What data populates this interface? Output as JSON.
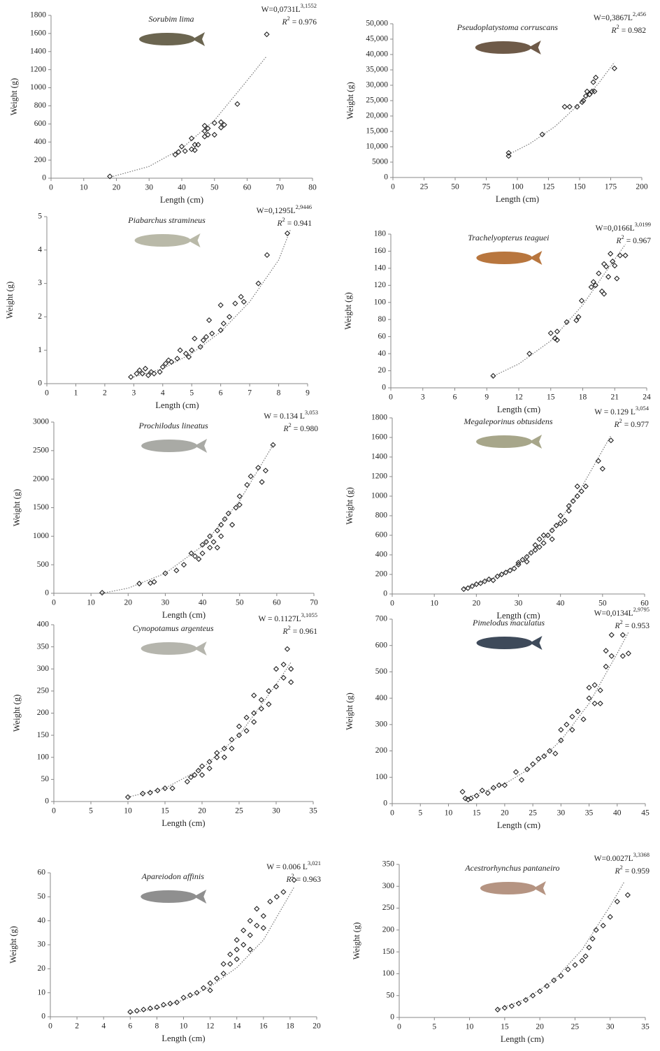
{
  "chart_data": [
    {
      "type": "scatter",
      "title": "Sorubim lima",
      "equation": {
        "text": "W=0,0731L",
        "exponent": "3,1552"
      },
      "r2": {
        "symbol": "R",
        "power": "2",
        "text": "= 0.976"
      },
      "xlabel": "Length (cm)",
      "ylabel": "Weight (g)",
      "x": [
        18,
        38,
        39,
        40,
        41,
        43,
        43,
        44,
        44,
        45,
        47,
        47,
        47,
        48,
        48,
        50,
        50,
        52,
        52,
        53,
        57,
        66
      ],
      "y": [
        20,
        260,
        290,
        350,
        300,
        320,
        440,
        370,
        310,
        370,
        460,
        580,
        520,
        480,
        550,
        610,
        480,
        560,
        620,
        590,
        820,
        1590
      ],
      "trend": {
        "x": [
          19,
          30,
          40,
          50,
          60,
          66
        ],
        "y": [
          20,
          130,
          330,
          640,
          1080,
          1350
        ]
      },
      "xlim": [
        0,
        80
      ],
      "ylim": [
        0,
        1800
      ],
      "xticks": [
        0,
        10,
        20,
        30,
        40,
        50,
        60,
        70,
        80
      ],
      "yticks": [
        0,
        200,
        400,
        600,
        800,
        1000,
        1200,
        1400,
        1600,
        1800
      ],
      "marker_color": "#222222",
      "trend_color": "#777777"
    },
    {
      "type": "scatter",
      "title": "Pseudoplatystoma corruscans",
      "equation": {
        "text": "W=0,3867L",
        "exponent": "2,456"
      },
      "r2": {
        "symbol": "R",
        "power": "2",
        "text": "= 0.982"
      },
      "xlabel": "Length (cm)",
      "ylabel": "Weight (g)",
      "x": [
        93,
        93,
        120,
        138,
        142,
        148,
        152,
        153,
        155,
        156,
        158,
        160,
        161,
        163,
        162,
        178
      ],
      "y": [
        7000,
        8000,
        14000,
        23000,
        23000,
        23000,
        24500,
        25000,
        26500,
        28000,
        27000,
        28000,
        31000,
        32500,
        28000,
        35500
      ],
      "trend": {
        "x": [
          93,
          110,
          130,
          150,
          165,
          178
        ],
        "y": [
          7500,
          11000,
          16500,
          24000,
          30500,
          37500
        ]
      },
      "xlim": [
        0,
        200
      ],
      "ylim": [
        0,
        50000
      ],
      "xticks": [
        0,
        25,
        50,
        75,
        100,
        125,
        150,
        175,
        200
      ],
      "yticks": [
        0,
        5000,
        {
          "value": 10000,
          "label": "10,000"
        },
        {
          "value": 15000,
          "label": "15,000"
        },
        {
          "value": 20000,
          "label": "20,000"
        },
        {
          "value": 25000,
          "label": "25,000"
        },
        {
          "value": 30000,
          "label": "30,000"
        },
        {
          "value": 35000,
          "label": "35,000"
        },
        {
          "value": 40000,
          "label": "40,000"
        },
        {
          "value": 45000,
          "label": "45,000"
        },
        {
          "value": 50000,
          "label": "50,000"
        }
      ],
      "marker_color": "#222222",
      "trend_color": "#777777"
    },
    {
      "type": "scatter",
      "title": "Piabarchus stramineus",
      "equation": {
        "text": "W=0,1295L",
        "exponent": "2,9446"
      },
      "r2": {
        "symbol": "R",
        "power": "2",
        "text": "= 0.941"
      },
      "xlabel": "Length (cm)",
      "ylabel": "Weight (g)",
      "x": [
        2.9,
        3.1,
        3.2,
        3.3,
        3.4,
        3.5,
        3.6,
        3.7,
        3.9,
        4.0,
        4.1,
        4.2,
        4.3,
        4.5,
        4.6,
        4.8,
        4.9,
        5.0,
        5.1,
        5.3,
        5.4,
        5.5,
        5.6,
        5.7,
        6.0,
        6.0,
        6.1,
        6.3,
        6.5,
        6.7,
        6.8,
        7.3,
        7.6,
        8.3
      ],
      "y": [
        0.2,
        0.3,
        0.4,
        0.3,
        0.45,
        0.25,
        0.35,
        0.3,
        0.35,
        0.5,
        0.6,
        0.7,
        0.65,
        0.75,
        1.0,
        0.9,
        0.8,
        1.0,
        1.35,
        1.1,
        1.3,
        1.4,
        1.9,
        1.5,
        1.6,
        2.35,
        1.8,
        2.0,
        2.4,
        2.6,
        2.45,
        3.0,
        3.85,
        4.5
      ],
      "trend": {
        "x": [
          3,
          4,
          5,
          6,
          7,
          8,
          8.4
        ],
        "y": [
          0.2,
          0.45,
          0.9,
          1.55,
          2.45,
          3.7,
          4.6
        ]
      },
      "xlim": [
        0,
        9
      ],
      "ylim": [
        0,
        5
      ],
      "xticks": [
        0,
        1,
        2,
        3,
        4,
        5,
        6,
        7,
        8,
        9
      ],
      "yticks": [
        0,
        1,
        2,
        3,
        4,
        5
      ],
      "marker_color": "#222222",
      "trend_color": "#777777"
    },
    {
      "type": "scatter",
      "title": "Trachelyopterus teaguei",
      "equation": {
        "text": "W=0,0166L",
        "exponent": "3,0199"
      },
      "r2": {
        "symbol": "R",
        "power": "2",
        "text": "= 0.967"
      },
      "xlabel": "Length (cm)",
      "ylabel": "Weight (g)",
      "x": [
        9.6,
        13,
        15,
        15.4,
        15.6,
        15.6,
        16.5,
        17.4,
        17.6,
        17.9,
        18.8,
        19,
        19.2,
        19.5,
        19.8,
        20,
        20,
        20.2,
        20.4,
        20.6,
        20.8,
        21,
        21.2,
        21.5,
        22
      ],
      "y": [
        14,
        40,
        64,
        58,
        66,
        56,
        77,
        79,
        83,
        102,
        118,
        124,
        120,
        134,
        113,
        145,
        110,
        142,
        130,
        157,
        148,
        143,
        128,
        155,
        155
      ],
      "trend": {
        "x": [
          9.5,
          12,
          15,
          18,
          20,
          22
        ],
        "y": [
          13,
          28,
          55,
          97,
          133,
          168
        ]
      },
      "xlim": [
        0,
        24
      ],
      "ylim": [
        0,
        180
      ],
      "xticks": [
        0,
        3,
        6,
        9,
        12,
        15,
        18,
        21,
        24
      ],
      "yticks": [
        0,
        20,
        40,
        60,
        80,
        100,
        120,
        140,
        160,
        180
      ],
      "marker_color": "#222222",
      "trend_color": "#777777"
    },
    {
      "type": "scatter",
      "title": "Prochilodus lineatus",
      "equation": {
        "text": "W = 0.134 L",
        "exponent": "3,053"
      },
      "r2": {
        "symbol": "R",
        "power": "2",
        "text": "= 0.980"
      },
      "xlabel": "Length (cm)",
      "ylabel": "Weight (g)",
      "x": [
        13,
        23,
        26,
        27,
        30,
        33,
        35,
        37,
        38,
        39,
        40,
        40,
        41,
        42,
        42,
        43,
        44,
        44,
        45,
        45,
        46,
        47,
        48,
        49,
        50,
        50,
        52,
        53,
        55,
        56,
        57,
        59
      ],
      "y": [
        10,
        170,
        180,
        200,
        350,
        400,
        500,
        700,
        650,
        600,
        700,
        850,
        900,
        800,
        1000,
        900,
        800,
        1100,
        1000,
        1200,
        1300,
        1400,
        1200,
        1500,
        1700,
        1550,
        1900,
        2050,
        2200,
        1950,
        2150,
        2600
      ],
      "trend": {
        "x": [
          13,
          20,
          30,
          40,
          50,
          59
        ],
        "y": [
          0,
          90,
          350,
          830,
          1620,
          2600
        ]
      },
      "xlim": [
        0,
        70
      ],
      "ylim": [
        0,
        3000
      ],
      "xticks": [
        0,
        10,
        20,
        30,
        40,
        50,
        60,
        70
      ],
      "yticks": [
        0,
        500,
        1000,
        1500,
        2000,
        2500,
        3000
      ],
      "marker_color": "#222222",
      "trend_color": "#777777"
    },
    {
      "type": "scatter",
      "title": "Megaleporinus obtusidens",
      "equation": {
        "text": "W = 0.129 L",
        "exponent": "3,054"
      },
      "r2": {
        "symbol": "R",
        "power": "2",
        "text": "= 0.977"
      },
      "xlabel": "Length (cm)",
      "ylabel": "Weight (g)",
      "x": [
        17,
        18,
        19,
        20,
        21,
        22,
        23,
        24,
        25,
        26,
        27,
        28,
        29,
        30,
        30,
        31,
        32,
        32,
        33,
        34,
        34,
        35,
        35,
        36,
        36,
        37,
        38,
        38,
        39,
        40,
        40,
        41,
        42,
        42,
        43,
        44,
        44,
        45,
        46,
        49,
        50,
        52
      ],
      "y": [
        50,
        60,
        80,
        100,
        110,
        130,
        150,
        140,
        180,
        200,
        220,
        240,
        260,
        300,
        320,
        350,
        380,
        330,
        420,
        450,
        500,
        480,
        560,
        520,
        600,
        600,
        650,
        560,
        700,
        720,
        800,
        750,
        850,
        900,
        950,
        1000,
        1100,
        1050,
        1100,
        1360,
        1280,
        1570
      ],
      "trend": {
        "x": [
          17,
          25,
          30,
          35,
          40,
          45,
          52
        ],
        "y": [
          55,
          180,
          310,
          500,
          760,
          1090,
          1620
        ]
      },
      "xlim": [
        0,
        60
      ],
      "ylim": [
        0,
        1800
      ],
      "xticks": [
        0,
        10,
        20,
        30,
        40,
        50,
        60
      ],
      "yticks": [
        0,
        200,
        400,
        600,
        800,
        1000,
        1200,
        1400,
        1600,
        1800
      ],
      "marker_color": "#222222",
      "trend_color": "#777777"
    },
    {
      "type": "scatter",
      "title": "Cynopotamus argenteus",
      "equation": {
        "text": "W = 0.1127L",
        "exponent": "3,1055"
      },
      "r2": {
        "symbol": "R",
        "power": "2",
        "text": "= 0.961"
      },
      "xlabel": "Length (cm)",
      "ylabel": "Weight (g)",
      "x": [
        10,
        12,
        13,
        14,
        15,
        16,
        18,
        18.5,
        19,
        19.5,
        20,
        20,
        21,
        21,
        22,
        22,
        23,
        23,
        24,
        24,
        25,
        25,
        26,
        26,
        27,
        27,
        27,
        28,
        28,
        29,
        29,
        30,
        30,
        31,
        31,
        32,
        32,
        31.5
      ],
      "y": [
        10,
        18,
        20,
        25,
        30,
        30,
        45,
        55,
        60,
        70,
        80,
        60,
        90,
        75,
        100,
        110,
        120,
        100,
        140,
        120,
        150,
        170,
        160,
        190,
        200,
        180,
        240,
        210,
        230,
        250,
        220,
        300,
        260,
        280,
        310,
        300,
        270,
        345
      ],
      "trend": {
        "x": [
          10,
          15,
          20,
          25,
          30,
          32
        ],
        "y": [
          10,
          30,
          75,
          150,
          265,
          315
        ]
      },
      "xlim": [
        0,
        35
      ],
      "ylim": [
        0,
        400
      ],
      "xticks": [
        0,
        5,
        10,
        15,
        20,
        25,
        30,
        35
      ],
      "yticks": [
        0,
        50,
        100,
        150,
        200,
        250,
        300,
        350,
        400
      ],
      "marker_color": "#222222",
      "trend_color": "#777777"
    },
    {
      "type": "scatter",
      "title": "Pimelodus maculatus",
      "equation": {
        "text": "W=0,0134L",
        "exponent": "2,9795"
      },
      "r2": {
        "symbol": "R",
        "power": "2",
        "text": "= 0.953"
      },
      "xlabel": "Length (cm)",
      "ylabel": "Weight (g)",
      "x": [
        12.5,
        13,
        13.5,
        14,
        15,
        16,
        17,
        18,
        19,
        20,
        22,
        23,
        24,
        25,
        26,
        27,
        28,
        29,
        30,
        30,
        31,
        32,
        32,
        33,
        34,
        35,
        35,
        36,
        36,
        37,
        37,
        38,
        38,
        39,
        39,
        41,
        41,
        42
      ],
      "y": [
        45,
        20,
        15,
        20,
        30,
        50,
        40,
        60,
        70,
        70,
        120,
        90,
        130,
        150,
        170,
        180,
        200,
        190,
        240,
        280,
        300,
        330,
        280,
        350,
        320,
        400,
        440,
        450,
        380,
        430,
        380,
        580,
        520,
        560,
        640,
        640,
        560,
        570
      ],
      "trend": {
        "x": [
          13,
          20,
          25,
          30,
          35,
          40,
          42
        ],
        "y": [
          20,
          75,
          140,
          240,
          380,
          570,
          650
        ]
      },
      "xlim": [
        0,
        45
      ],
      "ylim": [
        0,
        700
      ],
      "xticks": [
        0,
        5,
        10,
        15,
        20,
        25,
        30,
        35,
        40,
        45
      ],
      "yticks": [
        0,
        100,
        200,
        300,
        400,
        500,
        600,
        700
      ],
      "marker_color": "#222222",
      "trend_color": "#777777"
    },
    {
      "type": "scatter",
      "title": "Apareiodon affinis",
      "equation": {
        "text": "W = 0.006 L",
        "exponent": "3,021"
      },
      "r2": {
        "symbol": "R",
        "power": "2",
        "text": "= 0.963"
      },
      "xlabel": "Length (cm)",
      "ylabel": "Weight (g)",
      "x": [
        6,
        6.5,
        7,
        7.5,
        8,
        8.5,
        9,
        9.5,
        10,
        10.5,
        11,
        11.5,
        12,
        12,
        12.5,
        13,
        13,
        13.5,
        13.5,
        14,
        14,
        14,
        14.5,
        14.5,
        15,
        15,
        15,
        15.5,
        15.5,
        16,
        16,
        16.5,
        17,
        17.5,
        18.3
      ],
      "y": [
        2,
        2.5,
        3,
        3.5,
        4,
        5,
        5.5,
        6,
        8,
        9,
        10,
        12,
        14,
        11,
        16,
        18,
        22,
        22,
        26,
        28,
        24,
        32,
        30,
        36,
        34,
        28,
        40,
        38,
        45,
        42,
        37,
        48,
        50,
        52,
        57
      ],
      "trend": {
        "x": [
          6,
          8,
          10,
          12,
          14,
          16,
          18.3
        ],
        "y": [
          1.5,
          3.5,
          7,
          12.5,
          20.5,
          32,
          54
        ]
      },
      "xlim": [
        0,
        20
      ],
      "ylim": [
        0,
        60
      ],
      "xticks": [
        0,
        2,
        4,
        6,
        8,
        10,
        12,
        14,
        16,
        18,
        20
      ],
      "yticks": [
        0,
        10,
        20,
        30,
        40,
        50,
        60
      ],
      "marker_color": "#222222",
      "trend_color": "#777777"
    },
    {
      "type": "scatter",
      "title": "Acestrorhynchus pantaneiro",
      "equation": {
        "text": "W=0.0027L",
        "exponent": "3,3368"
      },
      "r2": {
        "symbol": "R",
        "power": "2",
        "text": "= 0.959"
      },
      "xlabel": "Length (cm)",
      "ylabel": "Weight (g)",
      "x": [
        14,
        15,
        16,
        17,
        18,
        19,
        20,
        21,
        22,
        23,
        24,
        25,
        26,
        26.5,
        27,
        27.5,
        28,
        29,
        30,
        31,
        32.5
      ],
      "y": [
        18,
        22,
        26,
        32,
        40,
        50,
        60,
        72,
        85,
        95,
        110,
        120,
        130,
        140,
        160,
        180,
        200,
        210,
        230,
        265,
        280
      ],
      "trend": {
        "x": [
          14,
          18,
          22,
          26,
          30,
          32
        ],
        "y": [
          18,
          42,
          85,
          155,
          255,
          310
        ]
      },
      "xlim": [
        0,
        35
      ],
      "ylim": [
        0,
        350
      ],
      "xticks": [
        0,
        5,
        10,
        15,
        20,
        25,
        30,
        35
      ],
      "yticks": [
        0,
        50,
        100,
        150,
        200,
        250,
        300,
        350
      ],
      "marker_color": "#222222",
      "trend_color": "#777777"
    }
  ]
}
